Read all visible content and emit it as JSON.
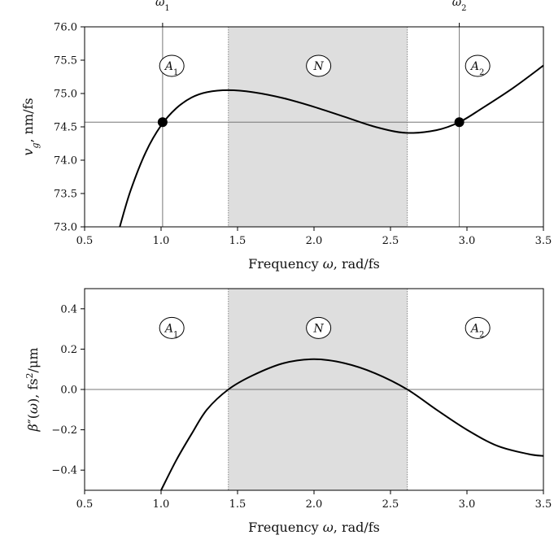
{
  "chart_data": [
    {
      "type": "line",
      "xlabel": "Frequency ω, rad/fs",
      "ylabel": "v_g, nm/fs",
      "xlim": [
        0.5,
        3.5
      ],
      "ylim": [
        73.0,
        76.0
      ],
      "xticks": [
        0.5,
        1.0,
        1.5,
        2.0,
        2.5,
        3.0,
        3.5
      ],
      "xtick_labels": [
        "0.5",
        "1.0",
        "1.5",
        "2.0",
        "2.5",
        "3.0",
        "3.5"
      ],
      "yticks": [
        73.0,
        73.5,
        74.0,
        74.5,
        75.0,
        75.5,
        76.0
      ],
      "ytick_labels": [
        "73.0",
        "73.5",
        "74.0",
        "74.5",
        "75.0",
        "75.5",
        "76.0"
      ],
      "shaded_region": [
        1.44,
        2.61
      ],
      "vertical_lines": [
        1.01,
        2.95
      ],
      "vertical_line_labels": [
        "ω1",
        "ω2"
      ],
      "horizontal_line": 74.57,
      "region_labels": [
        "A1",
        "N",
        "A2"
      ],
      "marked_points": [
        {
          "x": 1.01,
          "y": 74.57
        },
        {
          "x": 2.95,
          "y": 74.57
        }
      ],
      "series": [
        {
          "x": [
            0.73,
            0.8,
            0.9,
            1.0,
            1.1,
            1.2,
            1.3,
            1.44,
            1.6,
            1.8,
            2.0,
            2.2,
            2.4,
            2.6,
            2.8,
            2.95,
            3.1,
            3.3,
            3.5
          ],
          "values": [
            73.0,
            73.54,
            74.12,
            74.52,
            74.78,
            74.94,
            75.02,
            75.05,
            75.02,
            74.93,
            74.8,
            74.65,
            74.5,
            74.41,
            74.45,
            74.57,
            74.78,
            75.08,
            75.42
          ]
        }
      ],
      "grid": false
    },
    {
      "type": "line",
      "xlabel": "Frequency ω, rad/fs",
      "ylabel": "β″(ω), fs²/μm",
      "xlim": [
        0.5,
        3.5
      ],
      "ylim": [
        -0.5,
        0.5
      ],
      "xticks": [
        0.5,
        1.0,
        1.5,
        2.0,
        2.5,
        3.0,
        3.5
      ],
      "xtick_labels": [
        "0.5",
        "1.0",
        "1.5",
        "2.0",
        "2.5",
        "3.0",
        "3.5"
      ],
      "yticks": [
        -0.4,
        -0.2,
        0.0,
        0.2,
        0.4
      ],
      "ytick_labels": [
        "−0.4",
        "−0.2",
        "0.0",
        "0.2",
        "0.4"
      ],
      "shaded_region": [
        1.44,
        2.61
      ],
      "horizontal_line": 0.0,
      "region_labels": [
        "A1",
        "N",
        "A2"
      ],
      "series": [
        {
          "x": [
            1.0,
            1.1,
            1.2,
            1.3,
            1.44,
            1.6,
            1.8,
            2.0,
            2.2,
            2.4,
            2.61,
            2.8,
            3.0,
            3.2,
            3.4,
            3.5
          ],
          "values": [
            -0.5,
            -0.35,
            -0.22,
            -0.1,
            0.0,
            0.07,
            0.13,
            0.15,
            0.13,
            0.08,
            0.0,
            -0.1,
            -0.2,
            -0.28,
            -0.32,
            -0.33
          ]
        }
      ],
      "grid": false
    }
  ]
}
